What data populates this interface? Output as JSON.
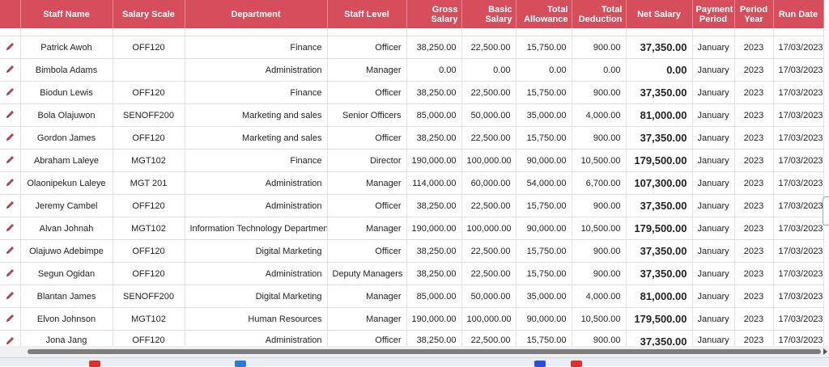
{
  "table": {
    "headers": {
      "staff_name": "Staff Name",
      "salary_scale": "Salary Scale",
      "department": "Department",
      "staff_level": "Staff Level",
      "gross_salary_1": "Gross",
      "gross_salary_2": "Salary",
      "basic_salary_1": "Basic",
      "basic_salary_2": "Salary",
      "total_allowance_1": "Total",
      "total_allowance_2": "Allowance",
      "total_deduction_1": "Total",
      "total_deduction_2": "Deduction",
      "net_salary": "Net Salary",
      "payment_period_1": "Payment",
      "payment_period_2": "Period",
      "period_year_1": "Period",
      "period_year_2": "Year",
      "run_date": "Run Date"
    },
    "rows": [
      {
        "name": "Patrick Awoh",
        "scale": "OFF120",
        "dept": "Finance",
        "level": "Officer",
        "gross": "38,250.00",
        "basic": "22,500.00",
        "allowance": "15,750.00",
        "deduction": "900.00",
        "net": "37,350.00",
        "period": "January",
        "year": "2023",
        "run_date": "17/03/2023"
      },
      {
        "name": "Bimbola Adams",
        "scale": "",
        "dept": "Administration",
        "level": "Manager",
        "gross": "0.00",
        "basic": "0.00",
        "allowance": "0.00",
        "deduction": "0.00",
        "net": "0.00",
        "period": "January",
        "year": "2023",
        "run_date": "17/03/2023"
      },
      {
        "name": "Biodun Lewis",
        "scale": "OFF120",
        "dept": "Finance",
        "level": "Officer",
        "gross": "38,250.00",
        "basic": "22,500.00",
        "allowance": "15,750.00",
        "deduction": "900.00",
        "net": "37,350.00",
        "period": "January",
        "year": "2023",
        "run_date": "17/03/2023"
      },
      {
        "name": "Bola Olajuwon",
        "scale": "SENOFF200",
        "dept": "Marketing and sales",
        "level": "Senior Officers",
        "gross": "85,000.00",
        "basic": "50,000.00",
        "allowance": "35,000.00",
        "deduction": "4,000.00",
        "net": "81,000.00",
        "period": "January",
        "year": "2023",
        "run_date": "17/03/2023"
      },
      {
        "name": "Gordon James",
        "scale": "OFF120",
        "dept": "Marketing and sales",
        "level": "Officer",
        "gross": "38,250.00",
        "basic": "22,500.00",
        "allowance": "15,750.00",
        "deduction": "900.00",
        "net": "37,350.00",
        "period": "January",
        "year": "2023",
        "run_date": "17/03/2023"
      },
      {
        "name": "Abraham Laleye",
        "scale": "MGT102",
        "dept": "Finance",
        "level": "Director",
        "gross": "190,000.00",
        "basic": "100,000.00",
        "allowance": "90,000.00",
        "deduction": "10,500.00",
        "net": "179,500.00",
        "period": "January",
        "year": "2023",
        "run_date": "17/03/2023"
      },
      {
        "name": "Olaonipekun Laleye",
        "scale": "MGT 201",
        "dept": "Administration",
        "level": "Manager",
        "gross": "114,000.00",
        "basic": "60,000.00",
        "allowance": "54,000.00",
        "deduction": "6,700.00",
        "net": "107,300.00",
        "period": "January",
        "year": "2023",
        "run_date": "17/03/2023"
      },
      {
        "name": "Jeremy Cambel",
        "scale": "OFF120",
        "dept": "Administration",
        "level": "Officer",
        "gross": "38,250.00",
        "basic": "22,500.00",
        "allowance": "15,750.00",
        "deduction": "900.00",
        "net": "37,350.00",
        "period": "January",
        "year": "2023",
        "run_date": "17/03/2023"
      },
      {
        "name": "Alvan Johnah",
        "scale": "MGT102",
        "dept": "Information Technology Department",
        "level": "Manager",
        "gross": "190,000.00",
        "basic": "100,000.00",
        "allowance": "90,000.00",
        "deduction": "10,500.00",
        "net": "179,500.00",
        "period": "January",
        "year": "2023",
        "run_date": "17/03/2023"
      },
      {
        "name": "Olajuwo Adebimpe",
        "scale": "OFF120",
        "dept": "Digital Marketing",
        "level": "Officer",
        "gross": "38,250.00",
        "basic": "22,500.00",
        "allowance": "15,750.00",
        "deduction": "900.00",
        "net": "37,350.00",
        "period": "January",
        "year": "2023",
        "run_date": "17/03/2023"
      },
      {
        "name": "Segun Ogidan",
        "scale": "OFF120",
        "dept": "Administration",
        "level": "Deputy Managers",
        "gross": "38,250.00",
        "basic": "22,500.00",
        "allowance": "15,750.00",
        "deduction": "900.00",
        "net": "37,350.00",
        "period": "January",
        "year": "2023",
        "run_date": "17/03/2023"
      },
      {
        "name": "Blantan James",
        "scale": "SENOFF200",
        "dept": "Digital Marketing",
        "level": "Manager",
        "gross": "85,000.00",
        "basic": "50,000.00",
        "allowance": "35,000.00",
        "deduction": "4,000.00",
        "net": "81,000.00",
        "period": "January",
        "year": "2023",
        "run_date": "17/03/2023"
      },
      {
        "name": "Elvon Johnson",
        "scale": "MGT102",
        "dept": "Human Resources",
        "level": "Manager",
        "gross": "190,000.00",
        "basic": "100,000.00",
        "allowance": "90,000.00",
        "deduction": "10,500.00",
        "net": "179,500.00",
        "period": "January",
        "year": "2023",
        "run_date": "17/03/2023"
      },
      {
        "name": "Jona Jang",
        "scale": "OFF120",
        "dept": "Administration",
        "level": "Officer",
        "gross": "38,250.00",
        "basic": "22,500.00",
        "allowance": "15,750.00",
        "deduction": "900.00",
        "net": "37,350.00",
        "period": "January",
        "year": "2023",
        "run_date": "17/03/2023"
      }
    ]
  },
  "icons": {
    "edit": "pencil-icon"
  },
  "colors": {
    "header_bg": "#d64d5b",
    "header_text": "#ffffff",
    "edit_icon": "#b5404f"
  }
}
